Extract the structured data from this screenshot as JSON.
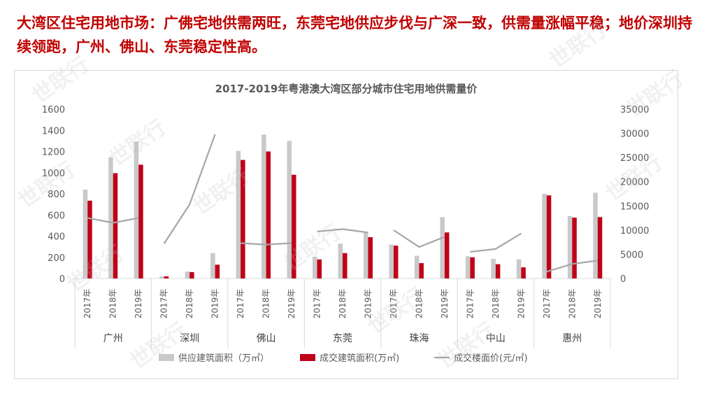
{
  "headline": "大湾区住宅用地市场：广佛宅地供需两旺，东莞宅地供应步伐与广深一致，供需量涨幅平稳；地价深圳持续领跑，广州、佛山、东莞稳定性高。",
  "watermark": "世联行",
  "colors": {
    "headline": "#c00000",
    "supply": "#c9c9c9",
    "transaction": "#c00018",
    "price": "#a6a6a6",
    "axis_text": "#595959"
  },
  "chart_data": {
    "type": "bar",
    "title": "2017-2019年粤港澳大湾区部分城市住宅用地供需量价",
    "groups": [
      "广州",
      "深圳",
      "佛山",
      "东莞",
      "珠海",
      "中山",
      "惠州"
    ],
    "years": [
      "2017年",
      "2018年",
      "2019年"
    ],
    "left_axis": {
      "min": 0,
      "max": 1600,
      "step": 200,
      "ticks": [
        "0",
        "200",
        "400",
        "600",
        "800",
        "1000",
        "1200",
        "1400",
        "1600"
      ]
    },
    "right_axis": {
      "min": 0,
      "max": 35000,
      "step": 5000,
      "ticks": [
        "0",
        "5000",
        "10000",
        "15000",
        "20000",
        "25000",
        "30000",
        "35000"
      ]
    },
    "series": [
      {
        "name": "供应建筑面积（万㎡）",
        "type": "bar",
        "axis": "left",
        "values": [
          [
            840,
            1145,
            1295
          ],
          [
            20,
            65,
            240
          ],
          [
            1205,
            1360,
            1300
          ],
          [
            205,
            330,
            440
          ],
          [
            320,
            215,
            580
          ],
          [
            210,
            185,
            180
          ],
          [
            800,
            590,
            810
          ]
        ]
      },
      {
        "name": "成交建筑面积(万㎡)",
        "type": "bar",
        "axis": "left",
        "values": [
          [
            735,
            995,
            1075
          ],
          [
            20,
            60,
            130
          ],
          [
            1120,
            1200,
            980
          ],
          [
            180,
            240,
            390
          ],
          [
            310,
            145,
            435
          ],
          [
            200,
            135,
            105
          ],
          [
            785,
            575,
            580
          ]
        ]
      },
      {
        "name": "成交楼面价(元/㎡)",
        "type": "line",
        "axis": "right",
        "values": [
          [
            12500,
            11500,
            12500
          ],
          [
            7200,
            15300,
            29800
          ],
          [
            7300,
            7000,
            7300
          ],
          [
            9700,
            10200,
            9500
          ],
          [
            10000,
            6500,
            8600
          ],
          [
            5500,
            6100,
            9300
          ],
          [
            1400,
            3000,
            3700
          ]
        ]
      }
    ],
    "legend_position": "bottom",
    "grid": false
  }
}
